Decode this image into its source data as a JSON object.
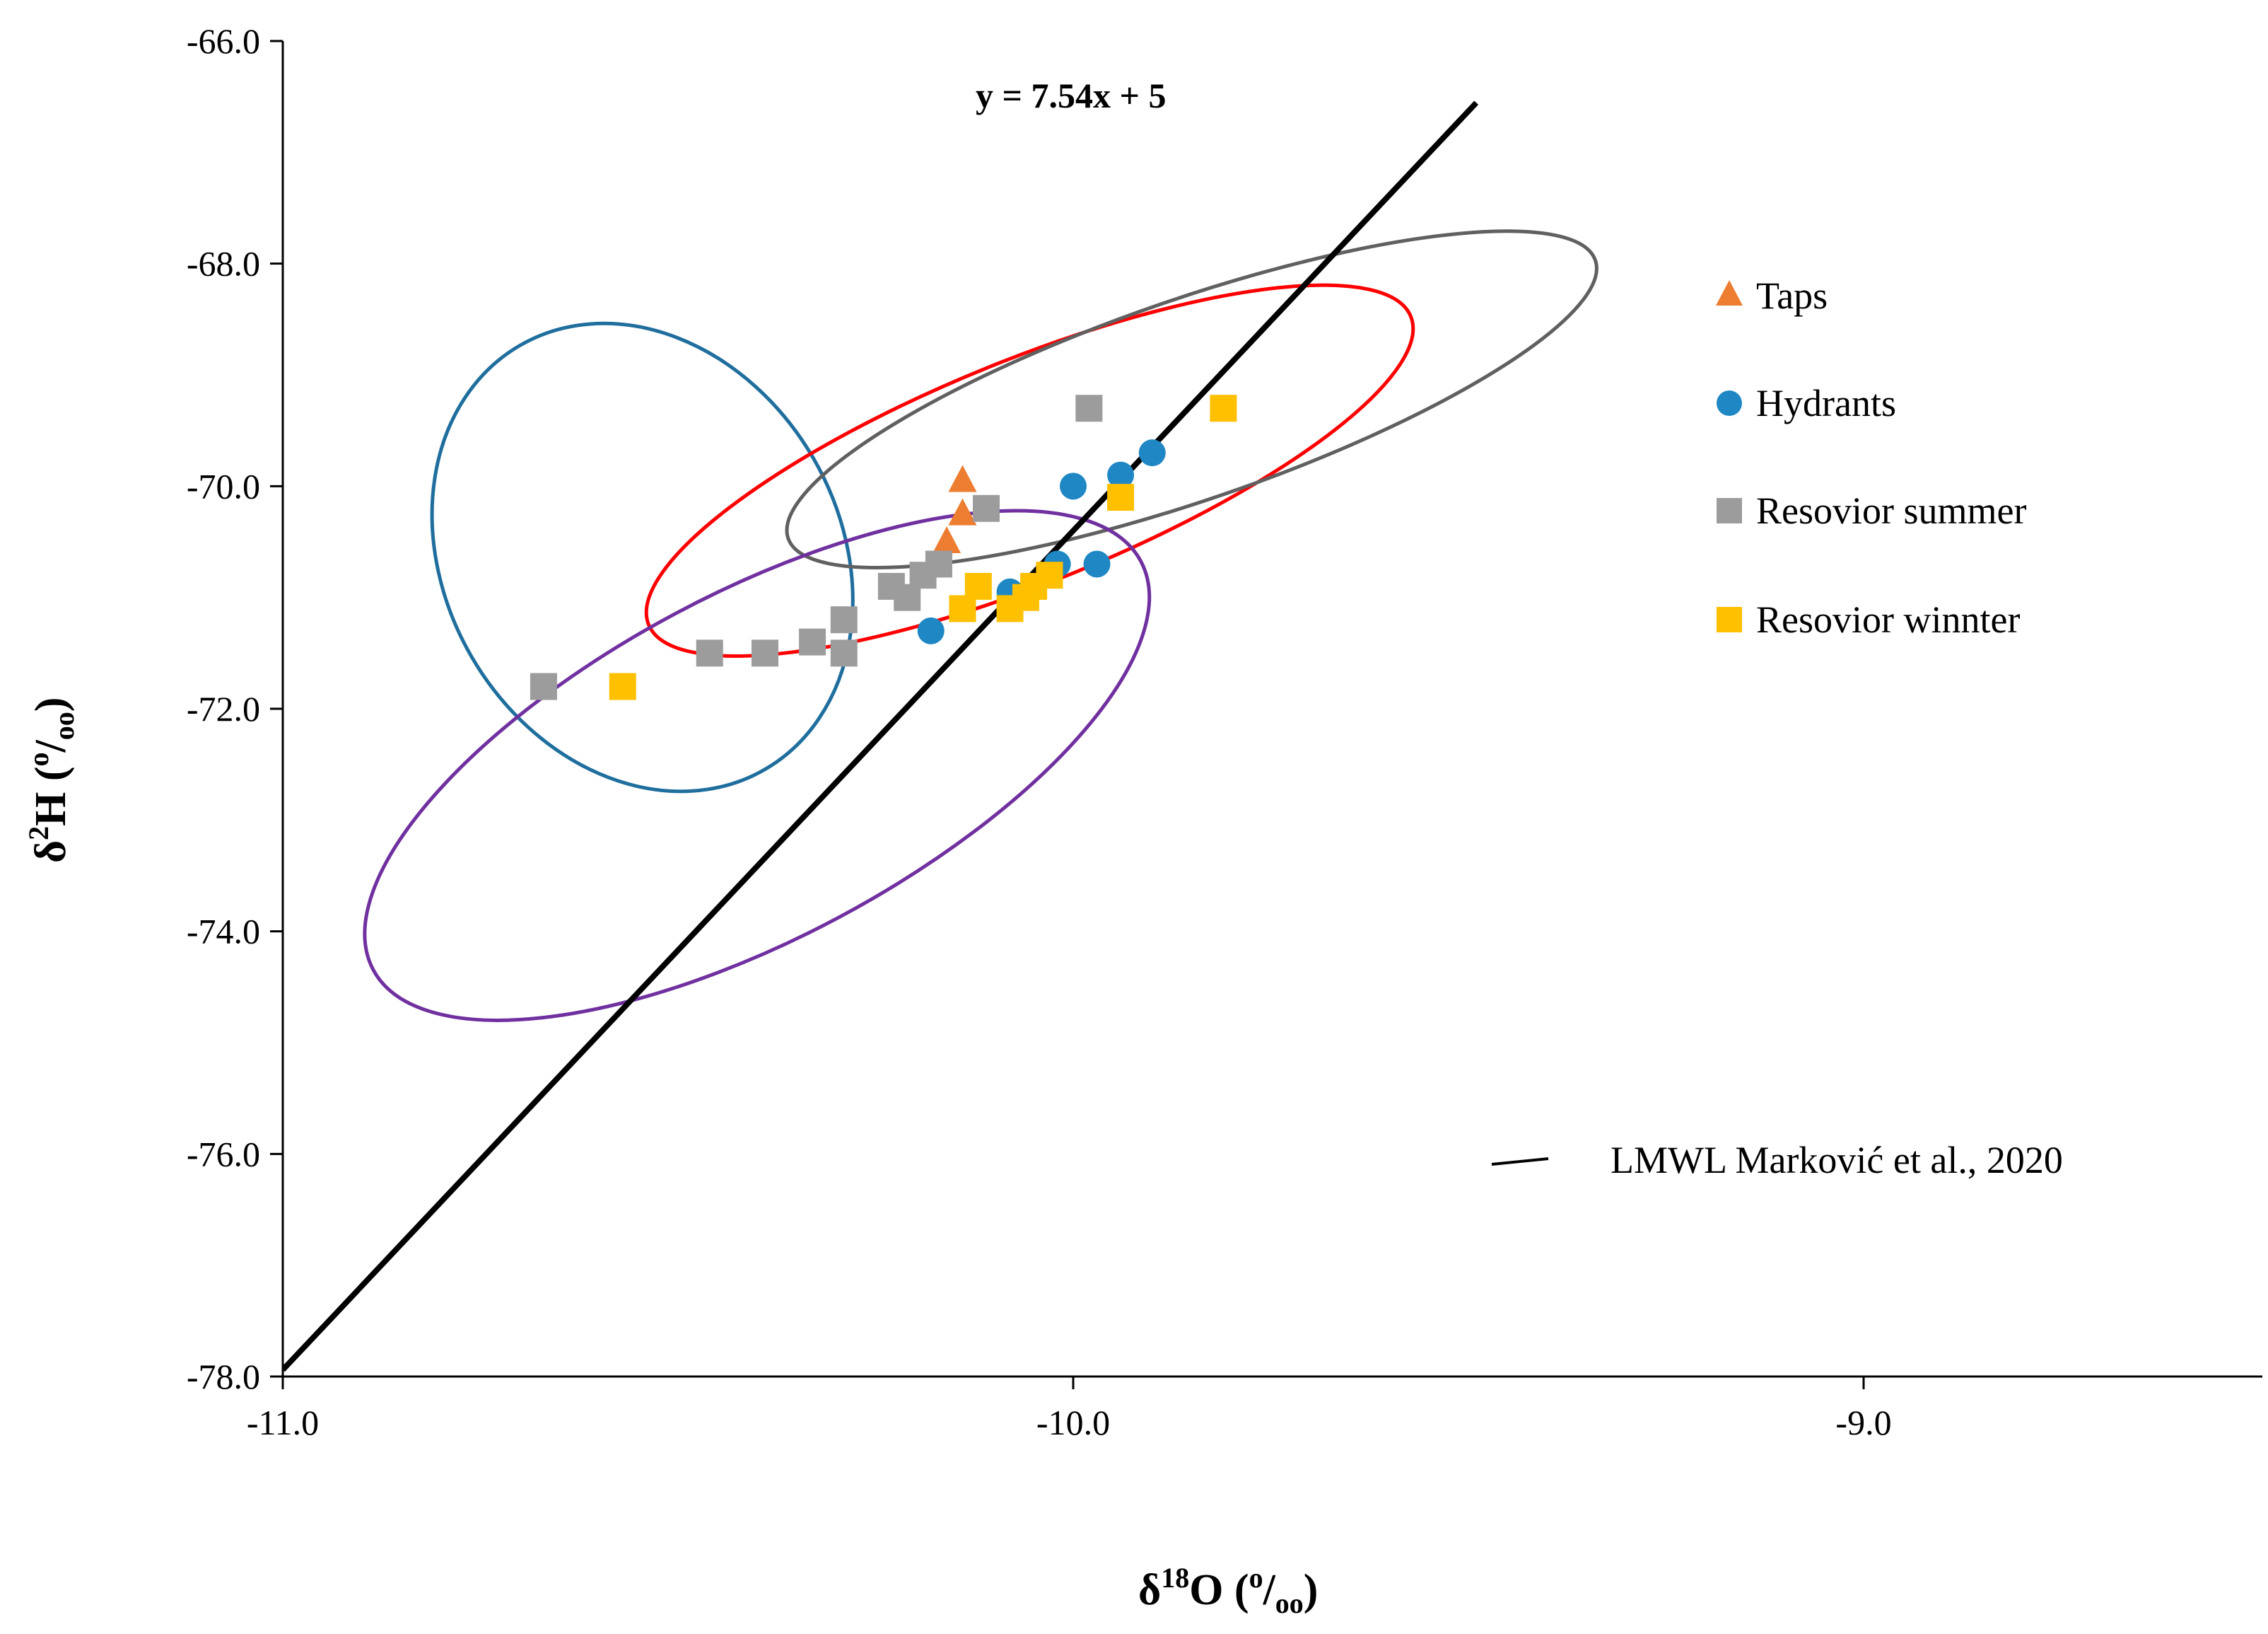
{
  "chart_data": {
    "type": "scatter",
    "title": "",
    "xlabel": {
      "main": "δ",
      "sup": "18",
      "rest": "O (",
      "permil_sup": "o",
      "slash": "/",
      "permil_sub": "oo",
      "close": ")"
    },
    "ylabel": {
      "main": "δ",
      "sup": "2",
      "rest": "H (",
      "permil_sup": "o",
      "slash": "/",
      "permil_sub": "oo",
      "close": ")"
    },
    "xlim": [
      -11.0,
      -8.5
    ],
    "ylim": [
      -78.0,
      -66.0
    ],
    "xticks": [
      -11.0,
      -10.0,
      -9.0
    ],
    "xtick_labels": [
      "-11.0",
      "-10.0",
      "-9.0"
    ],
    "yticks": [
      -78.0,
      -76.0,
      -74.0,
      -72.0,
      -70.0,
      -68.0,
      -66.0
    ],
    "ytick_labels": [
      "-78.0",
      "-76.0",
      "-74.0",
      "-72.0",
      "-70.0",
      "-68.0",
      "-66.0"
    ],
    "grid": false,
    "equation_label": "y = 7.54x + 5",
    "lmwl": {
      "label": "LMWL  Marković et al., 2020",
      "slope": 7.54,
      "intercept": 5,
      "x_range": [
        -11.0,
        -9.49
      ],
      "color": "#000000"
    },
    "series": [
      {
        "name": "Taps",
        "marker": "triangle",
        "color": "#ED7D31",
        "points": [
          [
            -10.14,
            -69.95
          ],
          [
            -10.14,
            -70.25
          ],
          [
            -10.16,
            -70.5
          ]
        ]
      },
      {
        "name": "Hydrants",
        "marker": "circle",
        "color": "#1F87C4",
        "points": [
          [
            -10.0,
            -70.0
          ],
          [
            -9.94,
            -69.9
          ],
          [
            -9.9,
            -69.7
          ],
          [
            -10.02,
            -70.7
          ],
          [
            -9.97,
            -70.7
          ],
          [
            -10.18,
            -71.3
          ],
          [
            -10.08,
            -70.95
          ]
        ]
      },
      {
        "name": "Resovior summer",
        "marker": "square",
        "color": "#9C9C9C",
        "points": [
          [
            -10.67,
            -71.8
          ],
          [
            -10.46,
            -71.5
          ],
          [
            -10.39,
            -71.5
          ],
          [
            -10.33,
            -71.4
          ],
          [
            -10.29,
            -71.5
          ],
          [
            -10.29,
            -71.2
          ],
          [
            -10.23,
            -70.9
          ],
          [
            -10.21,
            -71.0
          ],
          [
            -10.19,
            -70.8
          ],
          [
            -10.17,
            -70.7
          ],
          [
            -10.11,
            -70.2
          ],
          [
            -9.98,
            -69.3
          ]
        ]
      },
      {
        "name": "Resovior winnter",
        "marker": "square",
        "color": "#FFC000",
        "points": [
          [
            -10.57,
            -71.8
          ],
          [
            -10.14,
            -71.1
          ],
          [
            -10.12,
            -70.9
          ],
          [
            -10.08,
            -71.1
          ],
          [
            -10.06,
            -71.0
          ],
          [
            -10.05,
            -70.9
          ],
          [
            -10.03,
            -70.8
          ],
          [
            -9.94,
            -70.1
          ],
          [
            -9.81,
            -69.3
          ]
        ]
      }
    ],
    "ellipses": [
      {
        "name": "blue-ellipse",
        "color": "#1F6E9E",
        "cx": -10.545,
        "cy": -70.64,
        "rx": 0.25,
        "ry": 2.2,
        "rotation_deg": 30
      },
      {
        "name": "red-ellipse",
        "color": "#FF0000",
        "cx": -10.055,
        "cy": -69.86,
        "rx": 0.52,
        "ry": 1.0,
        "rotation_deg": 22
      },
      {
        "name": "gray-ellipse",
        "color": "#606060",
        "cx": -9.85,
        "cy": -69.22,
        "rx": 0.54,
        "ry": 0.9,
        "rotation_deg": 19
      },
      {
        "name": "purple-ellipse",
        "color": "#7030A0",
        "cx": -10.4,
        "cy": -72.51,
        "rx": 0.55,
        "ry": 1.55,
        "rotation_deg": 28
      }
    ],
    "legend_position": "right"
  }
}
